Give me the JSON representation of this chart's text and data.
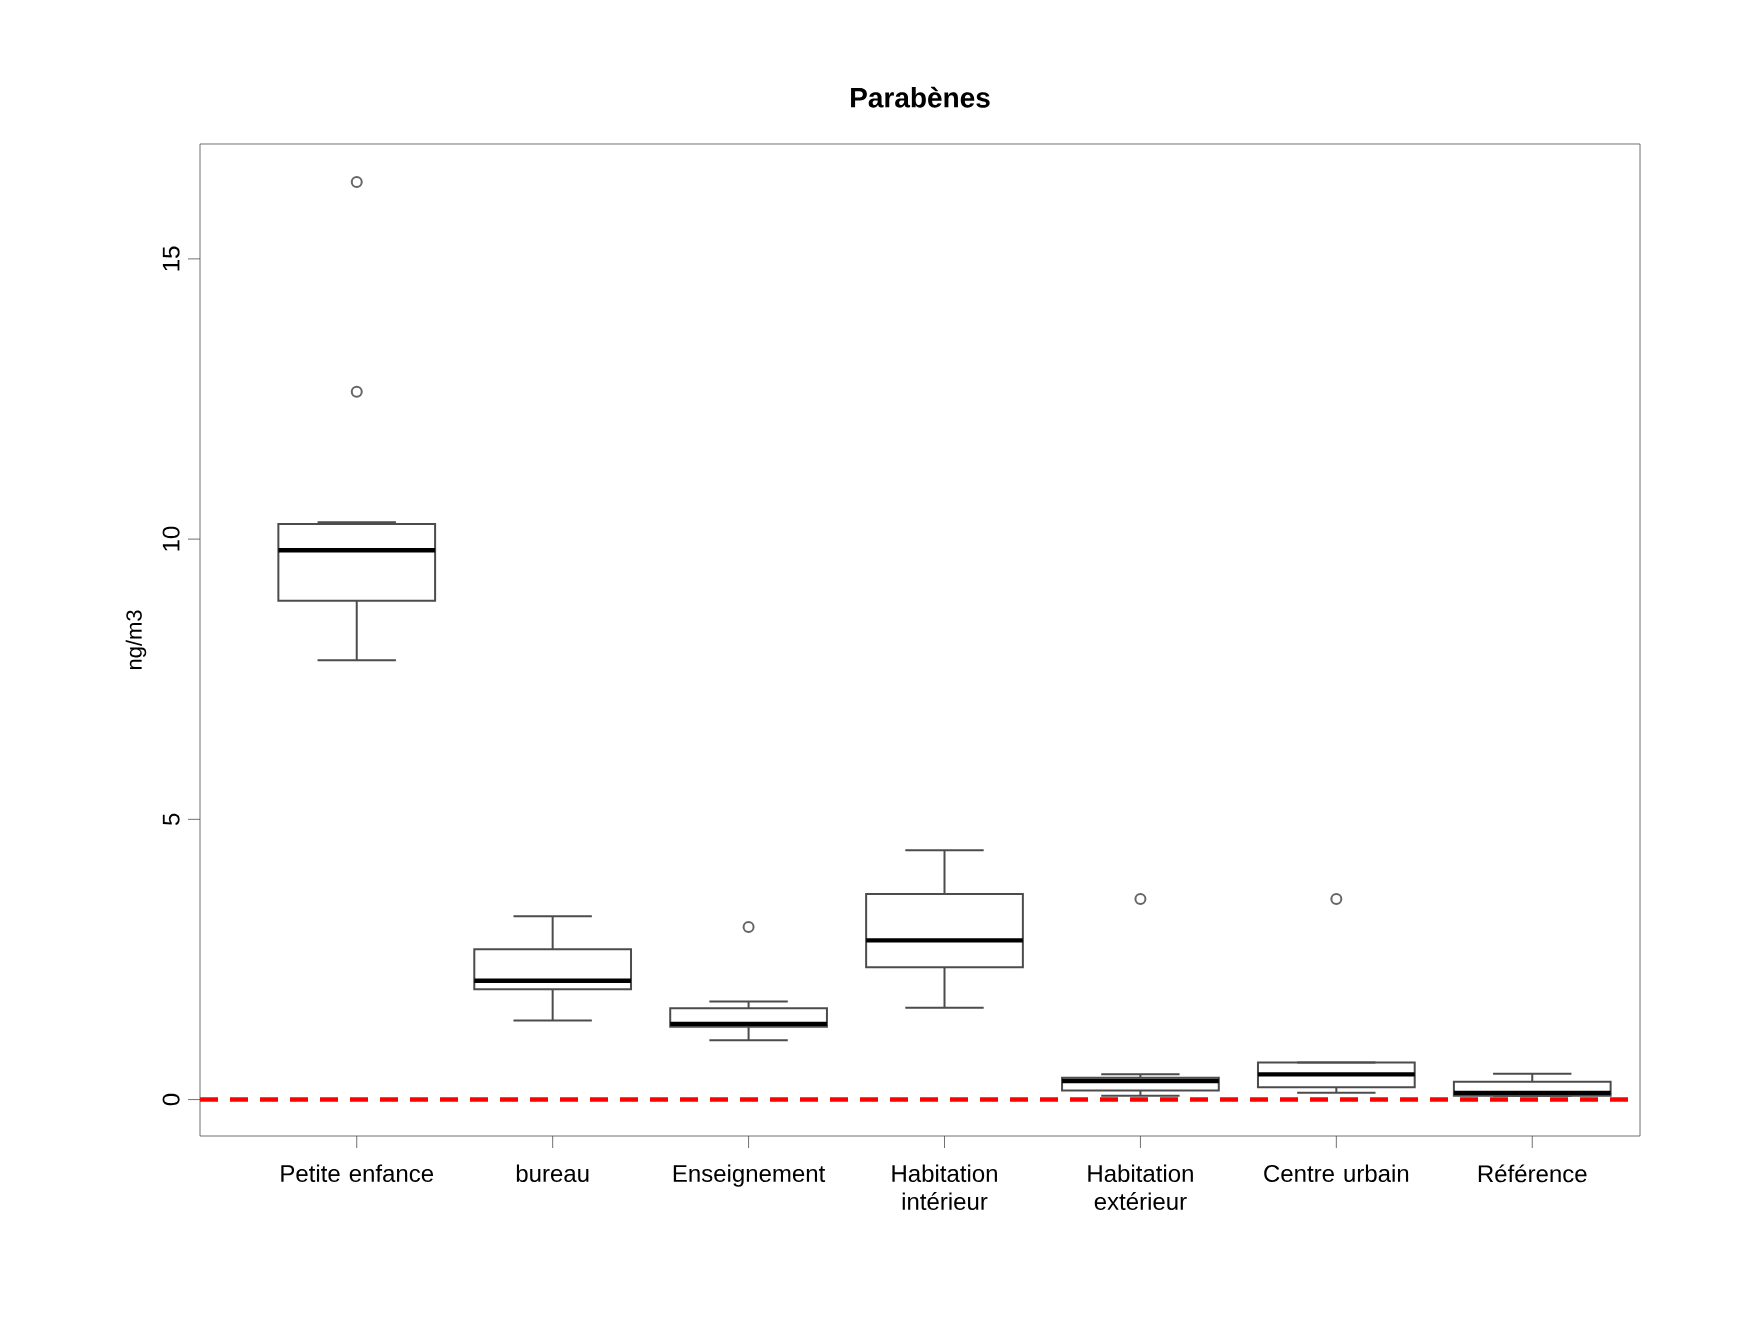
{
  "chart_data": {
    "type": "box",
    "title": "Parabènes",
    "ylabel": "ng/m3",
    "categories": [
      "Petite enfance",
      "bureau",
      "Enseignement",
      "Habitation intérieur",
      "Habitation extérieur",
      "Centre urbain",
      "Référence"
    ],
    "boxes": [
      {
        "low": 7.84,
        "q1": 8.9,
        "median": 9.8,
        "q3": 10.27,
        "high": 10.3,
        "outliers": [
          12.63,
          16.37
        ]
      },
      {
        "low": 1.41,
        "q1": 1.97,
        "median": 2.12,
        "q3": 2.68,
        "high": 3.27
      },
      {
        "low": 1.06,
        "q1": 1.3,
        "median": 1.35,
        "q3": 1.63,
        "high": 1.75,
        "outliers": [
          3.08
        ]
      },
      {
        "low": 1.64,
        "q1": 2.36,
        "median": 2.84,
        "q3": 3.67,
        "high": 4.45
      },
      {
        "low": 0.07,
        "q1": 0.16,
        "median": 0.33,
        "q3": 0.39,
        "high": 0.45,
        "outliers": [
          3.58
        ]
      },
      {
        "low": 0.12,
        "q1": 0.22,
        "median": 0.45,
        "q3": 0.66,
        "high": 0.66,
        "outliers": [
          3.58
        ]
      },
      {
        "low": 0.07,
        "q1": 0.07,
        "median": 0.12,
        "q3": 0.32,
        "high": 0.46
      }
    ],
    "ylim": [
      -0.65,
      17.05
    ],
    "yticks": [
      0,
      5,
      10,
      15
    ],
    "ref_lines": [
      {
        "axis": "y",
        "value": 0,
        "color": "#ff0000",
        "line_style": "dashed"
      }
    ],
    "marker": "circle",
    "grid": false
  }
}
